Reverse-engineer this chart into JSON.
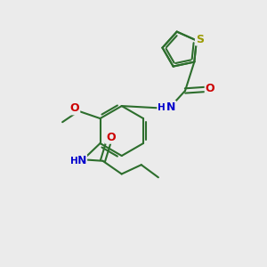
{
  "background_color": "#ebebeb",
  "bond_color": "#2d6e2d",
  "atom_colors": {
    "S": "#9a9a00",
    "N": "#0000cc",
    "O": "#cc0000",
    "C": "#2d6e2d"
  },
  "figsize": [
    3.0,
    3.0
  ],
  "dpi": 100
}
